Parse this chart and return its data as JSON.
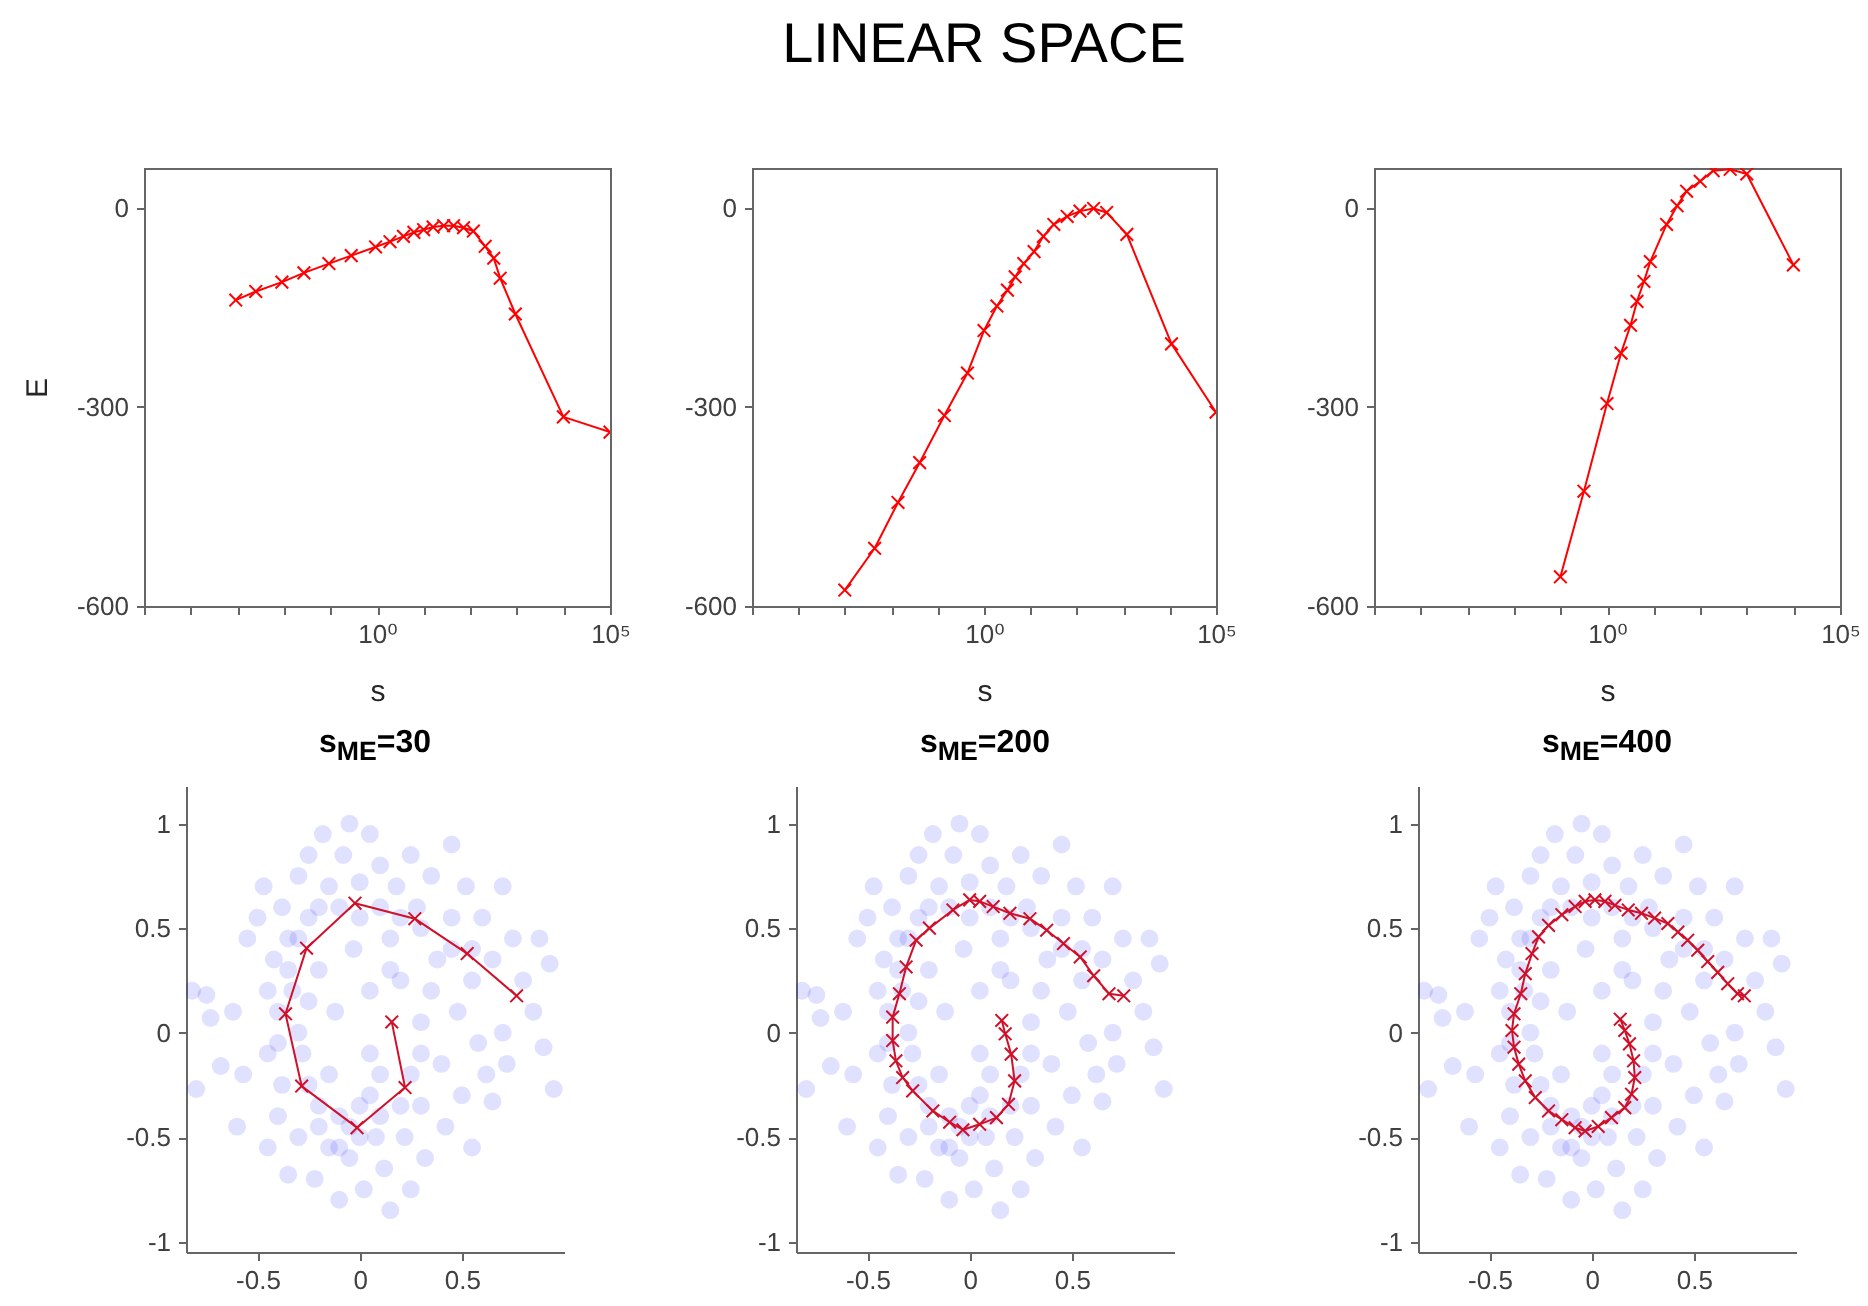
{
  "chart_data": [
    {
      "type": "line",
      "xlabel": "s",
      "ylabel": "E",
      "log": "x",
      "marker": "cross",
      "color": "#ff0000",
      "xlim": [
        1e-05,
        100000
      ],
      "xticks": [
        {
          "value": 1e-05,
          "label": null
        },
        {
          "value": 0.0001,
          "label": null
        },
        {
          "value": 0.001,
          "label": null
        },
        {
          "value": 0.01,
          "label": null
        },
        {
          "value": 0.1,
          "label": null
        },
        {
          "value": 1,
          "label": "10⁰"
        },
        {
          "value": 10,
          "label": null
        },
        {
          "value": 100,
          "label": null
        },
        {
          "value": 1000,
          "label": null
        },
        {
          "value": 10000,
          "label": null
        },
        {
          "value": 100000,
          "label": "10⁵"
        }
      ],
      "ylim": [
        -600,
        60
      ],
      "yticks": [
        -600,
        -300,
        0
      ],
      "x": [
        0.00093,
        0.0025,
        0.0091,
        0.027,
        0.093,
        0.28,
        0.93,
        1.9,
        3.7,
        6.2,
        10,
        16,
        27,
        44,
        72,
        117,
        210,
        320,
        440,
        930,
        10000,
        100000
      ],
      "values": [
        -139,
        -126,
        -112,
        -98,
        -84,
        -72,
        -59,
        -51,
        -43,
        -37,
        -33,
        -29,
        -27,
        -27,
        -30,
        -35,
        -58,
        -76,
        -106,
        -160,
        -315,
        -338
      ]
    },
    {
      "type": "line",
      "title": "LINEAR SPACE",
      "xlabel": "s",
      "log": "x",
      "marker": "cross",
      "color": "#ff0000",
      "xlim": [
        1e-05,
        100000
      ],
      "xticks": [
        {
          "value": 1e-05,
          "label": null
        },
        {
          "value": 0.0001,
          "label": null
        },
        {
          "value": 0.001,
          "label": null
        },
        {
          "value": 0.01,
          "label": null
        },
        {
          "value": 0.1,
          "label": null
        },
        {
          "value": 1,
          "label": "10⁰"
        },
        {
          "value": 10,
          "label": null
        },
        {
          "value": 100,
          "label": null
        },
        {
          "value": 1000,
          "label": null
        },
        {
          "value": 10000,
          "label": null
        },
        {
          "value": 100000,
          "label": "10⁵"
        }
      ],
      "ylim": [
        -600,
        60
      ],
      "yticks": [
        -600,
        -300,
        0
      ],
      "x": [
        0.001,
        0.0044,
        0.014,
        0.041,
        0.14,
        0.44,
        1,
        1.9,
        3.2,
        4.7,
        7.2,
        12,
        19,
        32,
        62,
        117,
        230,
        440,
        1200,
        11000,
        100000
      ],
      "values": [
        -576,
        -513,
        -444,
        -384,
        -313,
        -249,
        -185,
        -148,
        -124,
        -104,
        -84,
        -66,
        -43,
        -25,
        -13,
        -5,
        -1,
        -7,
        -40,
        -205,
        -308
      ]
    },
    {
      "type": "line",
      "xlabel": "s",
      "log": "x",
      "marker": "cross",
      "color": "#ff0000",
      "xlim": [
        1e-05,
        100000
      ],
      "xticks": [
        {
          "value": 1e-05,
          "label": null
        },
        {
          "value": 0.0001,
          "label": null
        },
        {
          "value": 0.001,
          "label": null
        },
        {
          "value": 0.01,
          "label": null
        },
        {
          "value": 0.1,
          "label": null
        },
        {
          "value": 1,
          "label": "10⁰"
        },
        {
          "value": 10,
          "label": null
        },
        {
          "value": 100,
          "label": null
        },
        {
          "value": 1000,
          "label": null
        },
        {
          "value": 10000,
          "label": null
        },
        {
          "value": 100000,
          "label": "10⁵"
        }
      ],
      "ylim": [
        -600,
        60
      ],
      "yticks": [
        -600,
        -300,
        0
      ],
      "x": [
        0.1,
        0.32,
        1,
        2,
        3.2,
        4.4,
        6.2,
        8.5,
        19,
        32,
        51,
        100,
        190,
        440,
        1000,
        10000
      ],
      "values": [
        -556,
        -427,
        -295,
        -219,
        -177,
        -141,
        -111,
        -81,
        -25,
        3,
        25,
        40,
        56,
        58,
        51,
        -86
      ]
    },
    {
      "type": "scatter",
      "title": "s$_{ME}$=30",
      "xlim": [
        -0.85,
        1
      ],
      "xticks": [
        -0.5,
        0,
        0.5
      ],
      "ylim": [
        -1.05,
        1.18
      ],
      "yticks": [
        -1,
        -0.5,
        0,
        0.5,
        1
      ],
      "series": [
        {
          "type": "scatter",
          "marker": "circle",
          "color": "#0000ff",
          "x": [
            -0.82,
            -0.75,
            -0.8,
            -0.73,
            -0.68,
            -0.62,
            -0.6,
            -0.57,
            -0.55,
            -0.5,
            -0.47,
            -0.45,
            -0.42,
            -0.4,
            -0.38,
            -0.35,
            -0.33,
            -0.3,
            -0.3,
            -0.28,
            -0.25,
            -0.25,
            -0.22,
            -0.2,
            -0.2,
            -0.18,
            -0.15,
            -0.15,
            -0.12,
            -0.1,
            -0.08,
            -0.05,
            -0.05,
            -0.03,
            0,
            0,
            0.02,
            0.05,
            0.05,
            0.08,
            0.1,
            0.1,
            0.12,
            0.15,
            0.15,
            0.18,
            0.2,
            0.22,
            0.25,
            0.25,
            0.28,
            0.3,
            0.3,
            0.32,
            0.35,
            0.38,
            0.4,
            0.42,
            0.45,
            0.45,
            0.48,
            0.5,
            0.52,
            0.55,
            0.58,
            0.6,
            0.62,
            0.65,
            0.7,
            0.7,
            0.72,
            0.75,
            0.8,
            0.85,
            0.9,
            0.93,
            0.95,
            0.88,
            0.65,
            0.55,
            -0.35,
            -0.3,
            -0.25,
            -0.2,
            -0.1,
            0,
            0.1,
            0.2,
            -0.3,
            -0.2,
            -0.1,
            0,
            0.1,
            0.3,
            0.45,
            0.55,
            -0.4,
            -0.45,
            -0.38,
            0.25,
            0.3,
            0.15,
            0.35,
            0.05,
            -0.15,
            -0.1,
            -0.05,
            0.05,
            -0.35,
            -0.25,
            0.2,
            -0.45,
            -0.4
          ],
          "values": [
            0.2,
            0.18,
            -0.27,
            0.07,
            -0.16,
            0.1,
            -0.45,
            -0.2,
            0.45,
            0.55,
            0.7,
            -0.55,
            0.35,
            -0.4,
            0.6,
            -0.68,
            0.2,
            0.75,
            -0.5,
            -0.1,
            0.85,
            0.55,
            -0.7,
            0.3,
            -0.35,
            0.95,
            0.7,
            -0.55,
            0.1,
            -0.8,
            0.85,
            1.0,
            -0.6,
            0.4,
            0.72,
            -0.35,
            -0.75,
            0.95,
            0.2,
            -0.5,
            0.8,
            -0.2,
            -0.65,
            0.45,
            -0.85,
            0.7,
            0.25,
            -0.5,
            0.85,
            -0.75,
            0.6,
            0.05,
            -0.35,
            -0.6,
            0.75,
            0.35,
            -0.15,
            -0.45,
            0.9,
            0.55,
            0.1,
            -0.3,
            0.7,
            0.25,
            -0.05,
            0.55,
            -0.2,
            0.35,
            0.7,
            0.0,
            -0.15,
            0.45,
            0.25,
            0.1,
            -0.07,
            0.33,
            -0.27,
            0.45,
            -0.33,
            -0.55,
            0.3,
            0.0,
            -0.25,
            -0.45,
            -0.4,
            -0.5,
            -0.4,
            -0.35,
            0.45,
            0.6,
            0.6,
            0.55,
            0.6,
            0.5,
            0.4,
            0.4,
            0.1,
            -0.1,
            -0.25,
            -0.2,
            -0.1,
            0.3,
            0.2,
            -0.1,
            -0.2,
            -0.55,
            -0.45,
            -0.3,
            0.45,
            0.15,
            0.55,
            0.2,
            -0.05
          ]
        },
        {
          "type": "line",
          "marker": "cross",
          "color": "#d0102a",
          "x": [
            0.768,
            0.526,
            0.27,
            -0.023,
            -0.26,
            -0.363,
            -0.284,
            -0.013,
            0.222,
            0.157
          ],
          "values": [
            0.176,
            0.378,
            0.545,
            0.619,
            0.404,
            0.09,
            -0.256,
            -0.455,
            -0.263,
            0.051
          ]
        }
      ]
    },
    {
      "type": "scatter",
      "title": "s$_{ME}$=200",
      "xlim": [
        -0.85,
        1
      ],
      "xticks": [
        -0.5,
        0,
        0.5
      ],
      "ylim": [
        -1.05,
        1.18
      ],
      "yticks": [
        -1,
        -0.5,
        0,
        0.5,
        1
      ],
      "series": [
        {
          "type": "scatter",
          "marker": "circle",
          "color": "#0000ff",
          "x": [
            -0.82,
            -0.75,
            -0.8,
            -0.73,
            -0.68,
            -0.62,
            -0.6,
            -0.57,
            -0.55,
            -0.5,
            -0.47,
            -0.45,
            -0.42,
            -0.4,
            -0.38,
            -0.35,
            -0.33,
            -0.3,
            -0.3,
            -0.28,
            -0.25,
            -0.25,
            -0.22,
            -0.2,
            -0.2,
            -0.18,
            -0.15,
            -0.15,
            -0.12,
            -0.1,
            -0.08,
            -0.05,
            -0.05,
            -0.03,
            0,
            0,
            0.02,
            0.05,
            0.05,
            0.08,
            0.1,
            0.1,
            0.12,
            0.15,
            0.15,
            0.18,
            0.2,
            0.22,
            0.25,
            0.25,
            0.28,
            0.3,
            0.3,
            0.32,
            0.35,
            0.38,
            0.4,
            0.42,
            0.45,
            0.45,
            0.48,
            0.5,
            0.52,
            0.55,
            0.58,
            0.6,
            0.62,
            0.65,
            0.7,
            0.7,
            0.72,
            0.75,
            0.8,
            0.85,
            0.9,
            0.93,
            0.95,
            0.88,
            0.65,
            0.55,
            -0.35,
            -0.3,
            -0.25,
            -0.2,
            -0.1,
            0,
            0.1,
            0.2,
            -0.3,
            -0.2,
            -0.1,
            0,
            0.1,
            0.3,
            0.45,
            0.55,
            -0.4,
            -0.45,
            -0.38,
            0.25,
            0.3,
            0.15,
            0.35,
            0.05,
            -0.15,
            -0.1,
            -0.05,
            0.05,
            -0.35,
            -0.25,
            0.2,
            -0.45,
            -0.4
          ],
          "values": [
            0.2,
            0.18,
            -0.27,
            0.07,
            -0.16,
            0.1,
            -0.45,
            -0.2,
            0.45,
            0.55,
            0.7,
            -0.55,
            0.35,
            -0.4,
            0.6,
            -0.68,
            0.2,
            0.75,
            -0.5,
            -0.1,
            0.85,
            0.55,
            -0.7,
            0.3,
            -0.35,
            0.95,
            0.7,
            -0.55,
            0.1,
            -0.8,
            0.85,
            1.0,
            -0.6,
            0.4,
            0.72,
            -0.35,
            -0.75,
            0.95,
            0.2,
            -0.5,
            0.8,
            -0.2,
            -0.65,
            0.45,
            -0.85,
            0.7,
            0.25,
            -0.5,
            0.85,
            -0.75,
            0.6,
            0.05,
            -0.35,
            -0.6,
            0.75,
            0.35,
            -0.15,
            -0.45,
            0.9,
            0.55,
            0.1,
            -0.3,
            0.7,
            0.25,
            -0.05,
            0.55,
            -0.2,
            0.35,
            0.7,
            0.0,
            -0.15,
            0.45,
            0.25,
            0.1,
            -0.07,
            0.33,
            -0.27,
            0.45,
            -0.33,
            -0.55,
            0.3,
            0.0,
            -0.25,
            -0.45,
            -0.4,
            -0.5,
            -0.4,
            -0.35,
            0.45,
            0.6,
            0.6,
            0.55,
            0.6,
            0.5,
            0.4,
            0.4,
            0.1,
            -0.1,
            -0.25,
            -0.2,
            -0.1,
            0.3,
            0.2,
            -0.1,
            -0.2,
            -0.55,
            -0.45,
            -0.3,
            0.45,
            0.15,
            0.55,
            0.2,
            -0.05
          ]
        },
        {
          "type": "line",
          "marker": "cross",
          "color": "#d0102a",
          "x": [
            0.754,
            0.682,
            0.607,
            0.541,
            0.459,
            0.377,
            0.295,
            0.197,
            0.115,
            0.049,
            0,
            -0.082,
            -0.197,
            -0.262,
            -0.311,
            -0.344,
            -0.377,
            -0.377,
            -0.361,
            -0.328,
            -0.279,
            -0.18,
            -0.098,
            -0.033,
            0.049,
            0.131,
            0.19,
            0.22,
            0.203,
            0.174,
            0.157
          ],
          "values": [
            0.176,
            0.186,
            0.272,
            0.362,
            0.426,
            0.49,
            0.545,
            0.571,
            0.603,
            0.628,
            0.635,
            0.587,
            0.5,
            0.442,
            0.314,
            0.186,
            0.074,
            -0.038,
            -0.135,
            -0.215,
            -0.279,
            -0.375,
            -0.429,
            -0.465,
            -0.439,
            -0.407,
            -0.343,
            -0.231,
            -0.103,
            -0.006,
            0.058
          ]
        }
      ]
    },
    {
      "type": "scatter",
      "title": "s$_{ME}$=400",
      "xlim": [
        -0.85,
        1
      ],
      "xticks": [
        -0.5,
        0,
        0.5
      ],
      "ylim": [
        -1.05,
        1.18
      ],
      "yticks": [
        -1,
        -0.5,
        0,
        0.5,
        1
      ],
      "series": [
        {
          "type": "scatter",
          "marker": "circle",
          "color": "#0000ff",
          "x": [
            -0.82,
            -0.75,
            -0.8,
            -0.73,
            -0.68,
            -0.62,
            -0.6,
            -0.57,
            -0.55,
            -0.5,
            -0.47,
            -0.45,
            -0.42,
            -0.4,
            -0.38,
            -0.35,
            -0.33,
            -0.3,
            -0.3,
            -0.28,
            -0.25,
            -0.25,
            -0.22,
            -0.2,
            -0.2,
            -0.18,
            -0.15,
            -0.15,
            -0.12,
            -0.1,
            -0.08,
            -0.05,
            -0.05,
            -0.03,
            0,
            0,
            0.02,
            0.05,
            0.05,
            0.08,
            0.1,
            0.1,
            0.12,
            0.15,
            0.15,
            0.18,
            0.2,
            0.22,
            0.25,
            0.25,
            0.28,
            0.3,
            0.3,
            0.32,
            0.35,
            0.38,
            0.4,
            0.42,
            0.45,
            0.45,
            0.48,
            0.5,
            0.52,
            0.55,
            0.58,
            0.6,
            0.62,
            0.65,
            0.7,
            0.7,
            0.72,
            0.75,
            0.8,
            0.85,
            0.9,
            0.93,
            0.95,
            0.88,
            0.65,
            0.55,
            -0.35,
            -0.3,
            -0.25,
            -0.2,
            -0.1,
            0,
            0.1,
            0.2,
            -0.3,
            -0.2,
            -0.1,
            0,
            0.1,
            0.3,
            0.45,
            0.55,
            -0.4,
            -0.45,
            -0.38,
            0.25,
            0.3,
            0.15,
            0.35,
            0.05,
            -0.15,
            -0.1,
            -0.05,
            0.05,
            -0.35,
            -0.25,
            0.2,
            -0.45,
            -0.4
          ],
          "values": [
            0.2,
            0.18,
            -0.27,
            0.07,
            -0.16,
            0.1,
            -0.45,
            -0.2,
            0.45,
            0.55,
            0.7,
            -0.55,
            0.35,
            -0.4,
            0.6,
            -0.68,
            0.2,
            0.75,
            -0.5,
            -0.1,
            0.85,
            0.55,
            -0.7,
            0.3,
            -0.35,
            0.95,
            0.7,
            -0.55,
            0.1,
            -0.8,
            0.85,
            1.0,
            -0.6,
            0.4,
            0.72,
            -0.35,
            -0.75,
            0.95,
            0.2,
            -0.5,
            0.8,
            -0.2,
            -0.65,
            0.45,
            -0.85,
            0.7,
            0.25,
            -0.5,
            0.85,
            -0.75,
            0.6,
            0.05,
            -0.35,
            -0.6,
            0.75,
            0.35,
            -0.15,
            -0.45,
            0.9,
            0.55,
            0.1,
            -0.3,
            0.7,
            0.25,
            -0.05,
            0.55,
            -0.2,
            0.35,
            0.7,
            0.0,
            -0.15,
            0.45,
            0.25,
            0.1,
            -0.07,
            0.33,
            -0.27,
            0.45,
            -0.33,
            -0.55,
            0.3,
            0.0,
            -0.25,
            -0.45,
            -0.4,
            -0.5,
            -0.4,
            -0.35,
            0.45,
            0.6,
            0.6,
            0.55,
            0.6,
            0.5,
            0.4,
            0.4,
            0.1,
            -0.1,
            -0.25,
            -0.2,
            -0.1,
            0.3,
            0.2,
            -0.1,
            -0.2,
            -0.55,
            -0.45,
            -0.3,
            0.45,
            0.15,
            0.55,
            0.2,
            -0.05
          ]
        },
        {
          "type": "line",
          "marker": "cross",
          "color": "#d0102a",
          "x": [
            0.747,
            0.714,
            0.666,
            0.617,
            0.568,
            0.519,
            0.47,
            0.422,
            0.373,
            0.308,
            0.244,
            0.179,
            0.114,
            0.065,
            0.016,
            -0.032,
            -0.081,
            -0.146,
            -0.211,
            -0.26,
            -0.292,
            -0.325,
            -0.347,
            -0.38,
            -0.39,
            -0.38,
            -0.357,
            -0.325,
            -0.276,
            -0.211,
            -0.146,
            -0.081,
            -0.032,
            0.032,
            0.097,
            0.162,
            0.195,
            0.211,
            0.205,
            0.185,
            0.162,
            0.14
          ],
          "values": [
            0.176,
            0.186,
            0.234,
            0.288,
            0.34,
            0.394,
            0.442,
            0.481,
            0.522,
            0.548,
            0.571,
            0.587,
            0.609,
            0.628,
            0.635,
            0.628,
            0.603,
            0.564,
            0.513,
            0.458,
            0.378,
            0.282,
            0.186,
            0.09,
            0.01,
            -0.07,
            -0.151,
            -0.231,
            -0.311,
            -0.375,
            -0.417,
            -0.455,
            -0.471,
            -0.449,
            -0.407,
            -0.359,
            -0.295,
            -0.215,
            -0.135,
            -0.054,
            0.01,
            0.064
          ]
        }
      ]
    }
  ]
}
